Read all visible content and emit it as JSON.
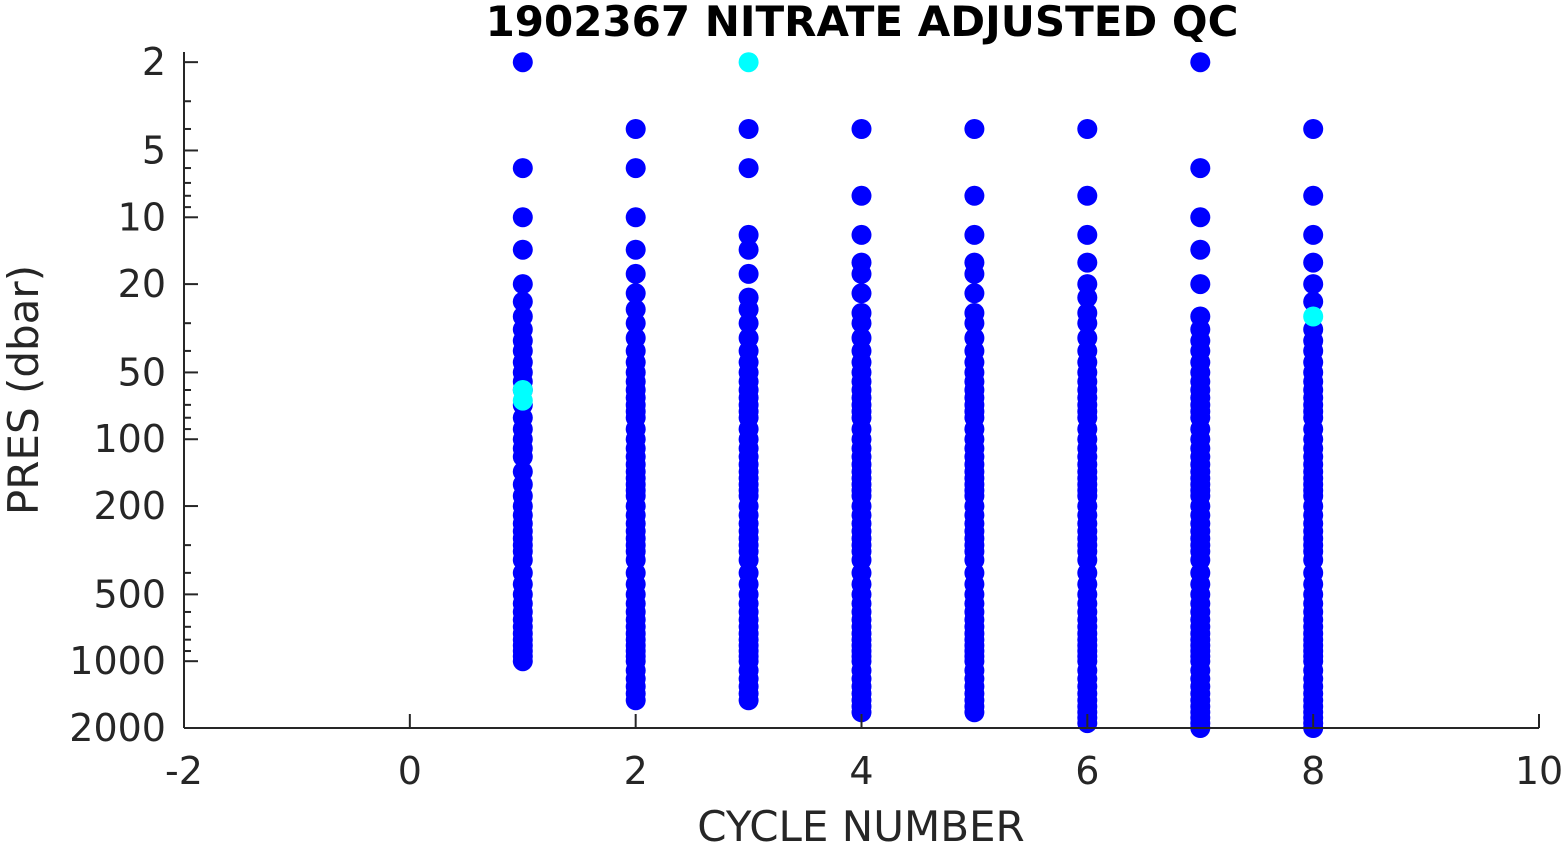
{
  "chart_data": {
    "type": "scatter",
    "title": "1902367  NITRATE ADJUSTED QC",
    "xlabel": "CYCLE NUMBER",
    "ylabel": "PRES (dbar)",
    "xlim": [
      -2,
      10
    ],
    "ylim": [
      2000,
      1.8
    ],
    "y_scale": "log",
    "y_reversed": true,
    "grid": false,
    "x_ticks": [
      -2,
      0,
      2,
      4,
      6,
      8,
      10
    ],
    "x_tick_labels": [
      "-2",
      "0",
      "2",
      "4",
      "6",
      "8",
      "10"
    ],
    "y_ticks": [
      2,
      5,
      10,
      20,
      50,
      100,
      200,
      500,
      1000,
      2000
    ],
    "y_tick_labels": [
      "2",
      "5",
      "10",
      "20",
      "50",
      "100",
      "200",
      "500",
      "1000",
      "2000"
    ],
    "colors": {
      "qc_good": "#0000ff",
      "qc_flagged": "#00ffff",
      "axis": "#262626"
    },
    "series": [
      {
        "color": "#0000ff",
        "profiles": [
          {
            "x": 1,
            "pres": [
              2,
              6,
              10,
              14,
              20,
              24,
              28,
              32,
              36,
              40,
              45,
              50,
              55,
              60,
              70,
              80,
              90,
              100,
              110,
              120,
              140,
              160,
              180,
              200,
              220,
              240,
              260,
              280,
              300,
              320,
              350,
              400,
              450,
              500,
              550,
              600,
              650,
              700,
              750,
              800,
              850,
              900,
              950,
              1000
            ]
          },
          {
            "x": 2,
            "pres": [
              4,
              6,
              10,
              14,
              18,
              22,
              26,
              30,
              35,
              40,
              45,
              50,
              55,
              60,
              65,
              70,
              75,
              80,
              90,
              100,
              110,
              120,
              130,
              140,
              150,
              160,
              170,
              180,
              200,
              220,
              240,
              260,
              280,
              300,
              320,
              350,
              400,
              450,
              500,
              550,
              600,
              650,
              700,
              750,
              800,
              850,
              900,
              950,
              1000,
              1100,
              1200,
              1300,
              1400,
              1500
            ]
          },
          {
            "x": 3,
            "pres": [
              4,
              6,
              12,
              14,
              18,
              23,
              26,
              30,
              35,
              40,
              45,
              50,
              55,
              60,
              65,
              70,
              75,
              80,
              90,
              100,
              110,
              120,
              130,
              140,
              150,
              160,
              170,
              180,
              200,
              220,
              240,
              260,
              280,
              300,
              320,
              350,
              400,
              450,
              500,
              550,
              600,
              650,
              700,
              750,
              800,
              850,
              900,
              950,
              1000,
              1100,
              1200,
              1300,
              1400,
              1500
            ]
          },
          {
            "x": 4,
            "pres": [
              4,
              8,
              12,
              16,
              18,
              22,
              27,
              30,
              35,
              40,
              45,
              50,
              55,
              60,
              65,
              70,
              75,
              80,
              90,
              100,
              110,
              120,
              130,
              140,
              150,
              160,
              170,
              180,
              200,
              220,
              240,
              260,
              280,
              300,
              320,
              350,
              400,
              450,
              500,
              550,
              600,
              650,
              700,
              750,
              800,
              850,
              900,
              950,
              1000,
              1100,
              1200,
              1300,
              1400,
              1500,
              1600,
              1700
            ]
          },
          {
            "x": 5,
            "pres": [
              4,
              8,
              12,
              16,
              18,
              22,
              27,
              30,
              35,
              40,
              45,
              50,
              55,
              60,
              65,
              70,
              75,
              80,
              90,
              100,
              110,
              120,
              130,
              140,
              150,
              160,
              170,
              180,
              200,
              220,
              240,
              260,
              280,
              300,
              320,
              350,
              400,
              450,
              500,
              550,
              600,
              650,
              700,
              750,
              800,
              850,
              900,
              950,
              1000,
              1100,
              1200,
              1300,
              1400,
              1500,
              1600,
              1700
            ]
          },
          {
            "x": 6,
            "pres": [
              4,
              8,
              12,
              16,
              20,
              23,
              27,
              30,
              35,
              40,
              45,
              50,
              55,
              60,
              65,
              70,
              75,
              80,
              90,
              100,
              110,
              120,
              130,
              140,
              150,
              160,
              170,
              180,
              200,
              220,
              240,
              260,
              280,
              300,
              320,
              350,
              400,
              450,
              500,
              550,
              600,
              650,
              700,
              750,
              800,
              850,
              900,
              950,
              1000,
              1100,
              1200,
              1300,
              1400,
              1500,
              1600,
              1700,
              1800,
              1900
            ]
          },
          {
            "x": 7,
            "pres": [
              2,
              6,
              10,
              14,
              20,
              28,
              32,
              36,
              40,
              45,
              50,
              55,
              60,
              65,
              70,
              75,
              80,
              90,
              100,
              110,
              120,
              130,
              140,
              150,
              160,
              170,
              180,
              200,
              220,
              240,
              260,
              280,
              300,
              320,
              350,
              400,
              450,
              500,
              550,
              600,
              650,
              700,
              750,
              800,
              850,
              900,
              950,
              1000,
              1100,
              1200,
              1300,
              1400,
              1500,
              1600,
              1700,
              1800,
              1900,
              2000
            ]
          },
          {
            "x": 8,
            "pres": [
              4,
              8,
              12,
              16,
              20,
              24,
              32,
              36,
              40,
              45,
              50,
              55,
              60,
              65,
              70,
              75,
              80,
              90,
              100,
              110,
              120,
              130,
              140,
              150,
              160,
              170,
              180,
              200,
              220,
              240,
              260,
              280,
              300,
              320,
              350,
              400,
              450,
              500,
              550,
              600,
              650,
              700,
              750,
              800,
              850,
              900,
              950,
              1000,
              1100,
              1200,
              1300,
              1400,
              1500,
              1600,
              1700,
              1800,
              1900,
              2000
            ]
          }
        ]
      },
      {
        "color": "#00ffff",
        "profiles": [
          {
            "x": 1,
            "pres": [
              60,
              67
            ]
          },
          {
            "x": 3,
            "pres": [
              2
            ]
          },
          {
            "x": 8,
            "pres": [
              28
            ]
          }
        ]
      }
    ]
  }
}
